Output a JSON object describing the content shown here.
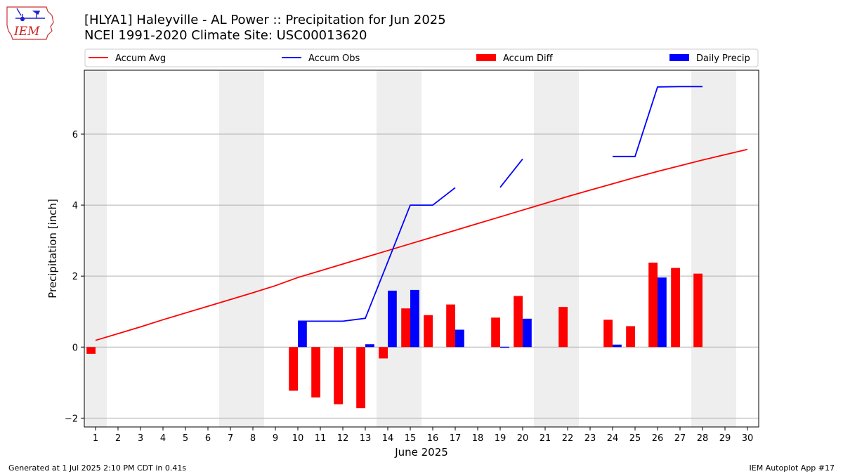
{
  "header": {
    "title_line1": "[HLYA1] Haleyville - AL Power :: Precipitation for Jun 2025",
    "title_line2": "NCEI 1991-2020 Climate Site: USC00013620",
    "logo_text": "IEM"
  },
  "footer": {
    "left": "Generated at 1 Jul 2025 2:10 PM CDT in 0.41s",
    "right": "IEM Autoplot App #17"
  },
  "colors": {
    "accum_avg": "#ff0000",
    "accum_obs": "#0000ff",
    "accum_diff": "#ff0000",
    "daily_precip": "#0000ff",
    "weekend_shade": "#eeeeee",
    "grid": "#b0b0b0"
  },
  "chart_data": {
    "type": "bar",
    "xlabel": "June 2025",
    "ylabel": "Precipitation [inch]",
    "xlim": [
      0.5,
      30.5
    ],
    "ylim": [
      -2.25,
      7.8
    ],
    "yticks": [
      -2,
      0,
      2,
      4,
      6
    ],
    "x": [
      1,
      2,
      3,
      4,
      5,
      6,
      7,
      8,
      9,
      10,
      11,
      12,
      13,
      14,
      15,
      16,
      17,
      18,
      19,
      20,
      21,
      22,
      23,
      24,
      25,
      26,
      27,
      28,
      29,
      30
    ],
    "grid": "horizontal",
    "legend_placement": "top",
    "weekend_days": [
      1,
      7,
      8,
      14,
      15,
      21,
      22,
      28,
      29
    ],
    "legend": [
      "Accum Avg",
      "Accum Obs",
      "Accum Diff",
      "Daily Precip"
    ],
    "series": [
      {
        "name": "Accum Avg",
        "kind": "line",
        "values": [
          0.19,
          0.38,
          0.57,
          0.77,
          0.96,
          1.15,
          1.34,
          1.53,
          1.73,
          1.96,
          2.15,
          2.34,
          2.53,
          2.72,
          2.91,
          3.1,
          3.29,
          3.48,
          3.67,
          3.86,
          4.05,
          4.24,
          4.42,
          4.6,
          4.78,
          4.95,
          5.11,
          5.27,
          5.42,
          5.57
        ]
      },
      {
        "name": "Accum Obs",
        "kind": "line",
        "values": [
          null,
          null,
          null,
          null,
          null,
          null,
          null,
          null,
          null,
          0.73,
          0.73,
          0.73,
          0.81,
          2.4,
          4.0,
          4.0,
          4.49,
          null,
          4.5,
          5.3,
          null,
          null,
          null,
          5.37,
          5.37,
          7.33,
          7.34,
          7.34,
          null,
          null
        ]
      },
      {
        "name": "Accum Diff",
        "kind": "bar",
        "values": [
          -0.19,
          null,
          null,
          null,
          null,
          null,
          null,
          null,
          null,
          -1.23,
          -1.42,
          -1.61,
          -1.72,
          -0.32,
          1.09,
          0.9,
          1.2,
          null,
          0.83,
          1.44,
          null,
          1.13,
          null,
          0.77,
          0.59,
          2.38,
          2.23,
          2.07,
          null,
          null
        ]
      },
      {
        "name": "Daily Precip",
        "kind": "bar",
        "values": [
          null,
          null,
          null,
          null,
          null,
          null,
          null,
          null,
          null,
          0.73,
          null,
          null,
          0.08,
          1.59,
          1.61,
          null,
          0.49,
          null,
          0.01,
          0.8,
          null,
          null,
          null,
          0.07,
          null,
          1.96,
          null,
          null,
          null,
          null
        ]
      }
    ]
  }
}
